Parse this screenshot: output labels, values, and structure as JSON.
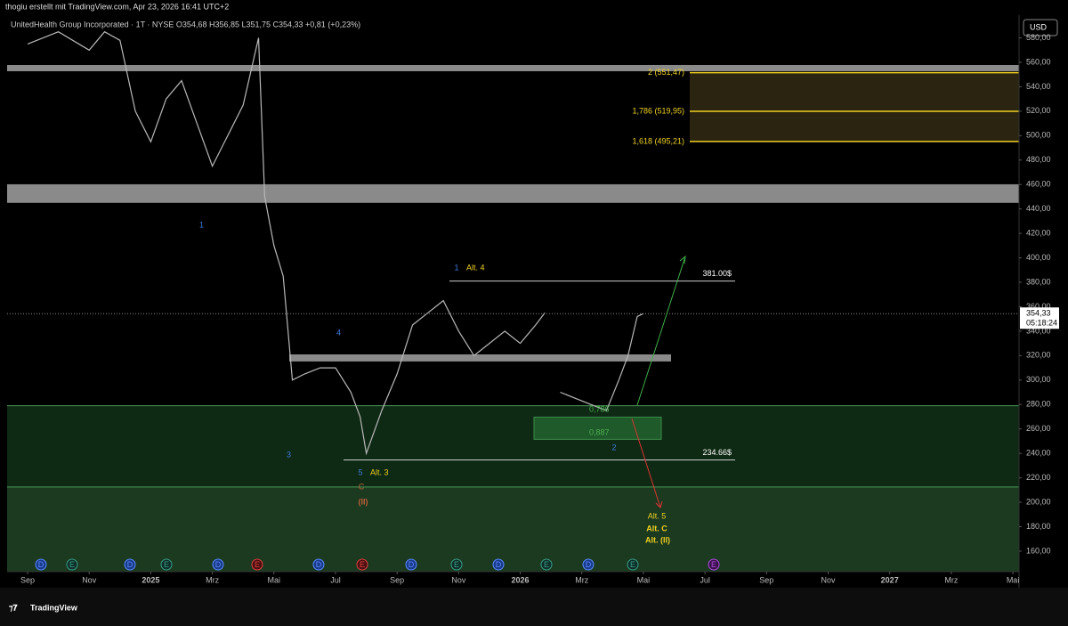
{
  "header": {
    "credit": "thogiu erstellt mit TradingView.com, Apr 23, 2026 16:41 UTC+2",
    "symbol": "UnitedHealth Group Incorporated · 1T · NYSE  O354,68 H356,85 L351,75 C354,33 +0,81 (+0,23%)",
    "currency": "USD",
    "brand": "TradingView"
  },
  "chart_data": {
    "type": "line",
    "color": "#b8b8b8",
    "x": [
      0,
      1,
      2,
      2.5,
      3,
      3.5,
      4,
      4.5,
      5,
      5.5,
      6,
      6.5,
      7,
      7.5,
      7.7,
      8,
      8.3,
      8.6,
      9,
      9.5,
      10,
      10.5,
      10.8,
      11,
      11.5,
      12,
      12.5,
      13,
      13.5,
      14,
      14.5,
      15,
      15.5,
      16,
      16.5,
      16.8,
      17,
      17.3,
      17.8,
      18.3,
      18.8,
      19.2,
      19.5,
      19.8,
      20
    ],
    "values": [
      575,
      585,
      570,
      585,
      578,
      520,
      495,
      530,
      545,
      510,
      475,
      500,
      525,
      580,
      450,
      410,
      385,
      300,
      305,
      310,
      310,
      290,
      270,
      240,
      275,
      305,
      345,
      355,
      365,
      340,
      320,
      330,
      340,
      330,
      345,
      355,
      null,
      290,
      285,
      280,
      275,
      300,
      320,
      352,
      354.33
    ],
    "xlim": [
      -0.665,
      32.2
    ],
    "xticks": [
      {
        "value": 0,
        "label": "Sep"
      },
      {
        "value": 2,
        "label": "Nov"
      },
      {
        "value": 4,
        "label": "2025"
      },
      {
        "value": 6,
        "label": "Mrz"
      },
      {
        "value": 8,
        "label": "Mai"
      },
      {
        "value": 10,
        "label": "Jul"
      },
      {
        "value": 12,
        "label": "Sep"
      },
      {
        "value": 14,
        "label": "Nov"
      },
      {
        "value": 16,
        "label": "2026"
      },
      {
        "value": 18,
        "label": "Mrz"
      },
      {
        "value": 20,
        "label": "Mai"
      },
      {
        "value": 22,
        "label": "Jul"
      },
      {
        "value": 24,
        "label": "Sep"
      },
      {
        "value": 26,
        "label": "Nov"
      },
      {
        "value": 28,
        "label": "2027"
      },
      {
        "value": 30,
        "label": "Mrz"
      },
      {
        "value": 32,
        "label": "Mai"
      }
    ],
    "ylim": [
      143.2,
      598.6
    ],
    "yticks": [
      {
        "value": 160,
        "label": "160,00"
      },
      {
        "value": 180,
        "label": "180,00"
      },
      {
        "value": 200,
        "label": "200,00"
      },
      {
        "value": 220,
        "label": "220,00"
      },
      {
        "value": 240,
        "label": "240,00"
      },
      {
        "value": 260,
        "label": "260,00"
      },
      {
        "value": 280,
        "label": "280,00"
      },
      {
        "value": 300,
        "label": "300,00"
      },
      {
        "value": 320,
        "label": "320,00"
      },
      {
        "value": 340,
        "label": "340,00"
      },
      {
        "value": 360,
        "label": "360,00"
      },
      {
        "value": 380,
        "label": "380,00"
      },
      {
        "value": 400,
        "label": "400,00"
      },
      {
        "value": 420,
        "label": "420,00"
      },
      {
        "value": 440,
        "label": "440,00"
      },
      {
        "value": 460,
        "label": "460,00"
      },
      {
        "value": 480,
        "label": "480,00"
      },
      {
        "value": 500,
        "label": "500,00"
      },
      {
        "value": 520,
        "label": "520,00"
      },
      {
        "value": 540,
        "label": "540,00"
      },
      {
        "value": 560,
        "label": "560,00"
      },
      {
        "value": 580,
        "label": "580,00"
      }
    ],
    "last_price_label": "354,33",
    "countdown": "05:18:24",
    "zones": [
      {
        "from": 557.8,
        "to": 552.7,
        "color": "#8a8a8a"
      },
      {
        "from": 460.2,
        "to": 445,
        "color": "#8a8a8a"
      },
      {
        "from": 321,
        "to": 315.2,
        "color": "#8a8a8a"
      },
      {
        "from": 279,
        "to": 212.5,
        "color": "#0f2a14"
      },
      {
        "from": 212.5,
        "to": 143.2,
        "color": "#1b3a20"
      },
      {
        "from": 269.7,
        "to": 251.5,
        "color": "#1f5a2a"
      },
      {
        "from": 551.47,
        "to": 495.21,
        "color": "#2a2410"
      }
    ],
    "fib_levels": [
      {
        "value": 551.47,
        "label": "2 (551,47)"
      },
      {
        "value": 519.95,
        "label": "1,786 (519,95)"
      },
      {
        "value": 495.21,
        "label": "1,618 (495,21)"
      }
    ],
    "targets": [
      {
        "value": 381,
        "label": "381.00$"
      },
      {
        "value": 234.66,
        "label": "234.66$"
      }
    ],
    "annotations": [
      "1",
      "3",
      "4",
      "5",
      "Alt. 3",
      "C",
      "(II)",
      "1",
      "Alt. 4",
      "2",
      "0,786",
      "0,887",
      "Alt. 5",
      "Alt. C",
      "Alt. (II)"
    ],
    "events": [
      "D",
      "E",
      "D",
      "E",
      "D",
      "E",
      "D",
      "E",
      "D",
      "E",
      "D",
      "E",
      "D",
      "E",
      "E"
    ]
  }
}
